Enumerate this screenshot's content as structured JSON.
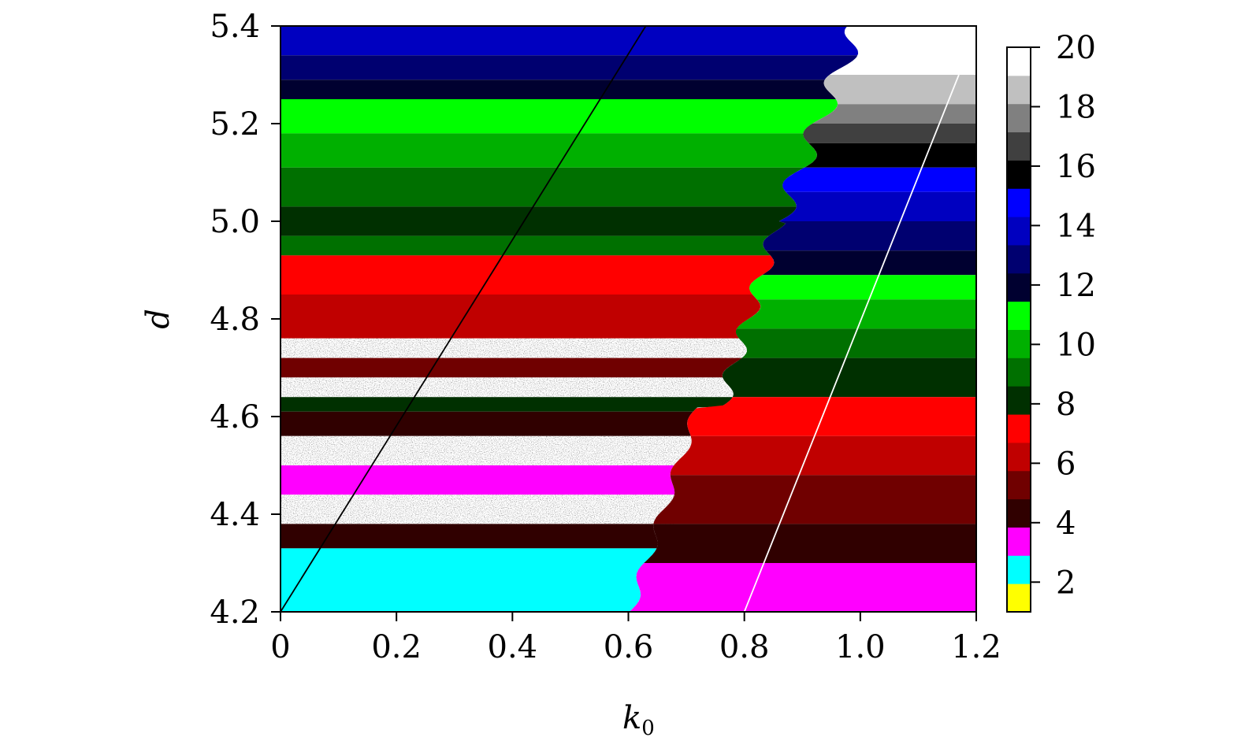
{
  "chart_data": {
    "type": "heatmap",
    "xlabel": "k",
    "xlabel_sub": "0",
    "ylabel": "d",
    "xlim": [
      0,
      1.2
    ],
    "ylim": [
      4.2,
      5.4
    ],
    "x_ticks": [
      "0",
      "0.2",
      "0.4",
      "0.6",
      "0.8",
      "1.0",
      "1.2"
    ],
    "x_tick_values": [
      0,
      0.2,
      0.4,
      0.6,
      0.8,
      1.0,
      1.2
    ],
    "y_ticks": [
      "4.2",
      "4.4",
      "4.6",
      "4.8",
      "5.0",
      "5.2",
      "5.4"
    ],
    "y_tick_values": [
      4.2,
      4.4,
      4.6,
      4.8,
      5.0,
      5.2,
      5.4
    ],
    "colorbar": {
      "range": [
        1,
        20
      ],
      "ticks": [
        "2",
        "4",
        "6",
        "8",
        "10",
        "12",
        "14",
        "16",
        "18",
        "20"
      ],
      "tick_values": [
        2,
        4,
        6,
        8,
        10,
        12,
        14,
        16,
        18,
        20
      ],
      "levels": [
        {
          "value": 1,
          "color": "#ffff00"
        },
        {
          "value": 2,
          "color": "#00ffff"
        },
        {
          "value": 3,
          "color": "#ff00ff"
        },
        {
          "value": 4,
          "color": "#300000"
        },
        {
          "value": 5,
          "color": "#700000"
        },
        {
          "value": 6,
          "color": "#c00000"
        },
        {
          "value": 7,
          "color": "#ff0000"
        },
        {
          "value": 8,
          "color": "#003000"
        },
        {
          "value": 9,
          "color": "#007000"
        },
        {
          "value": 10,
          "color": "#00b000"
        },
        {
          "value": 11,
          "color": "#00ff00"
        },
        {
          "value": 12,
          "color": "#000030"
        },
        {
          "value": 13,
          "color": "#000070"
        },
        {
          "value": 14,
          "color": "#0000c0"
        },
        {
          "value": 15,
          "color": "#0000ff"
        },
        {
          "value": 16,
          "color": "#000000"
        },
        {
          "value": 17,
          "color": "#404040"
        },
        {
          "value": 18,
          "color": "#808080"
        },
        {
          "value": 19,
          "color": "#c0c0c0"
        },
        {
          "value": 20,
          "color": "#ffffff"
        }
      ]
    },
    "left_region_bands": [
      {
        "d_low": 5.34,
        "d_high": 5.4,
        "value": 14
      },
      {
        "d_low": 5.29,
        "d_high": 5.34,
        "value": 13
      },
      {
        "d_low": 5.25,
        "d_high": 5.29,
        "value": 12
      },
      {
        "d_low": 5.18,
        "d_high": 5.25,
        "value": 11
      },
      {
        "d_low": 5.11,
        "d_high": 5.18,
        "value": 10
      },
      {
        "d_low": 5.03,
        "d_high": 5.11,
        "value": 9
      },
      {
        "d_low": 4.97,
        "d_high": 5.03,
        "value": 8
      },
      {
        "d_low": 4.93,
        "d_high": 4.97,
        "value": 9
      },
      {
        "d_low": 4.85,
        "d_high": 4.93,
        "value": 7
      },
      {
        "d_low": 4.76,
        "d_high": 4.85,
        "value": 6
      },
      {
        "d_low": 4.72,
        "d_high": 4.76,
        "value": 20
      },
      {
        "d_low": 4.68,
        "d_high": 4.72,
        "value": 5
      },
      {
        "d_low": 4.64,
        "d_high": 4.68,
        "value": 20
      },
      {
        "d_low": 4.61,
        "d_high": 4.64,
        "value": 8
      },
      {
        "d_low": 4.56,
        "d_high": 4.61,
        "value": 4
      },
      {
        "d_low": 4.5,
        "d_high": 4.56,
        "value": 20
      },
      {
        "d_low": 4.44,
        "d_high": 4.5,
        "value": 3
      },
      {
        "d_low": 4.38,
        "d_high": 4.44,
        "value": 20
      },
      {
        "d_low": 4.33,
        "d_high": 4.38,
        "value": 4
      },
      {
        "d_low": 4.2,
        "d_high": 4.33,
        "value": 2
      }
    ],
    "right_region_bands": [
      {
        "d_low": 5.3,
        "d_high": 5.4,
        "value": 20
      },
      {
        "d_low": 5.24,
        "d_high": 5.3,
        "value": 19
      },
      {
        "d_low": 5.2,
        "d_high": 5.24,
        "value": 18
      },
      {
        "d_low": 5.16,
        "d_high": 5.2,
        "value": 17
      },
      {
        "d_low": 5.11,
        "d_high": 5.16,
        "value": 16
      },
      {
        "d_low": 5.06,
        "d_high": 5.11,
        "value": 15
      },
      {
        "d_low": 5.0,
        "d_high": 5.06,
        "value": 14
      },
      {
        "d_low": 4.94,
        "d_high": 5.0,
        "value": 13
      },
      {
        "d_low": 4.89,
        "d_high": 4.94,
        "value": 12
      },
      {
        "d_low": 4.84,
        "d_high": 4.89,
        "value": 11
      },
      {
        "d_low": 4.78,
        "d_high": 4.84,
        "value": 10
      },
      {
        "d_low": 4.72,
        "d_high": 4.78,
        "value": 9
      },
      {
        "d_low": 4.64,
        "d_high": 4.72,
        "value": 8
      },
      {
        "d_low": 4.56,
        "d_high": 4.64,
        "value": 7
      },
      {
        "d_low": 4.48,
        "d_high": 4.56,
        "value": 6
      },
      {
        "d_low": 4.38,
        "d_high": 4.48,
        "value": 5
      },
      {
        "d_low": 4.3,
        "d_high": 4.38,
        "value": 4
      },
      {
        "d_low": 4.2,
        "d_high": 4.3,
        "value": 3
      }
    ],
    "lines": [
      {
        "color": "#000000",
        "x": [
          0.0,
          0.63
        ],
        "y": [
          4.2,
          5.4
        ]
      },
      {
        "color": "#ffffff",
        "x": [
          0.8,
          1.17
        ],
        "y": [
          4.2,
          5.3
        ]
      }
    ]
  }
}
